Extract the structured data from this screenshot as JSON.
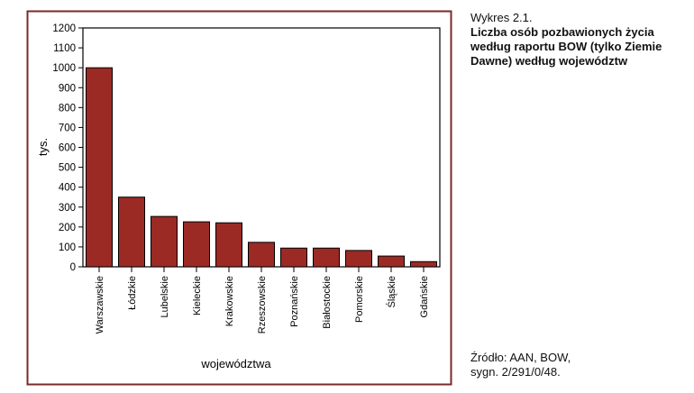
{
  "caption": {
    "label": "Wykres 2.1.",
    "title": "Liczba osób pozbawionych życia według raportu BOW (tylko Ziemie Dawne) według województw"
  },
  "source": {
    "line1": "Źródło: AAN, BOW,",
    "line2": "sygn. 2/291/0/48."
  },
  "colors": {
    "bar": "#9b2a25",
    "frame": "#7a2a2a"
  },
  "chart_data": {
    "type": "bar",
    "title": "",
    "xlabel": "województwa",
    "ylabel": "tys.",
    "ylim": [
      0,
      1200
    ],
    "yticks": [
      0,
      100,
      200,
      300,
      400,
      500,
      600,
      700,
      800,
      900,
      1000,
      1100,
      1200
    ],
    "grid": false,
    "categories": [
      "Warszawskie",
      "Łódzkie",
      "Lubelskie",
      "Kieleckie",
      "Krakowskie",
      "Rzeszowskie",
      "Poznańskie",
      "Białostockie",
      "Pomorskie",
      "Śląskie",
      "Gdańskie"
    ],
    "values": [
      1000,
      350,
      253,
      226,
      221,
      123,
      94,
      94,
      82,
      54,
      26
    ]
  }
}
